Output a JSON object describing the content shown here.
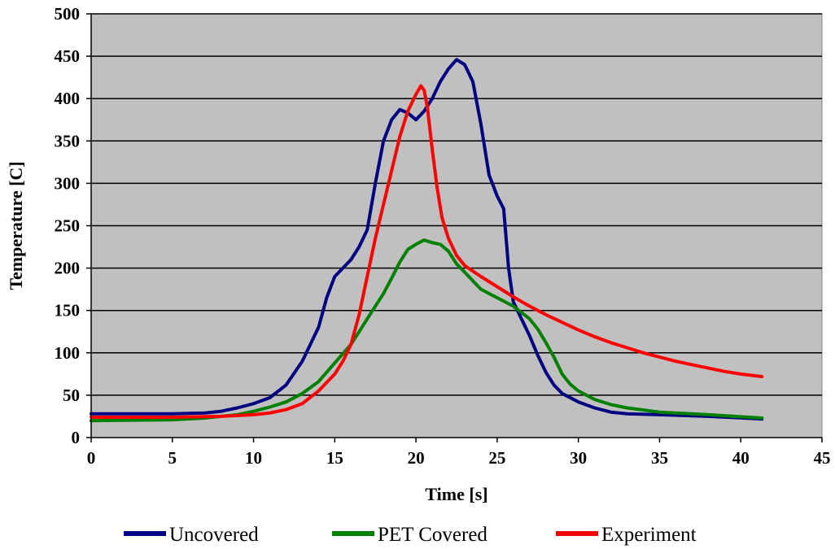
{
  "chart_data": {
    "type": "line",
    "title": "",
    "xlabel": "Time [s]",
    "ylabel": "Temperature [C]",
    "xlim": [
      0,
      45
    ],
    "ylim": [
      0,
      500
    ],
    "x_ticks": [
      0,
      5,
      10,
      15,
      20,
      25,
      30,
      35,
      40,
      45
    ],
    "y_ticks": [
      0,
      50,
      100,
      150,
      200,
      250,
      300,
      350,
      400,
      450,
      500
    ],
    "grid": "horizontal",
    "legend_position": "bottom",
    "plot_background": "#c0c0c0",
    "series": [
      {
        "name": "Uncovered",
        "color": "#000080",
        "points": [
          [
            0,
            28
          ],
          [
            5,
            28
          ],
          [
            7,
            29
          ],
          [
            8,
            31
          ],
          [
            9,
            35
          ],
          [
            10,
            40
          ],
          [
            11,
            47
          ],
          [
            12,
            62
          ],
          [
            13,
            90
          ],
          [
            14,
            130
          ],
          [
            14.5,
            165
          ],
          [
            15,
            190
          ],
          [
            15.5,
            200
          ],
          [
            16,
            210
          ],
          [
            16.5,
            225
          ],
          [
            17,
            245
          ],
          [
            17.5,
            300
          ],
          [
            18,
            350
          ],
          [
            18.5,
            375
          ],
          [
            19,
            387
          ],
          [
            19.5,
            383
          ],
          [
            20,
            375
          ],
          [
            20.5,
            385
          ],
          [
            21,
            400
          ],
          [
            21.5,
            420
          ],
          [
            22,
            435
          ],
          [
            22.5,
            446
          ],
          [
            23,
            440
          ],
          [
            23.5,
            420
          ],
          [
            24,
            370
          ],
          [
            24.5,
            310
          ],
          [
            25,
            285
          ],
          [
            25.4,
            270
          ],
          [
            25.7,
            200
          ],
          [
            26,
            160
          ],
          [
            26.5,
            140
          ],
          [
            27,
            120
          ],
          [
            27.5,
            97
          ],
          [
            28,
            77
          ],
          [
            28.5,
            62
          ],
          [
            29,
            52
          ],
          [
            30,
            42
          ],
          [
            31,
            35
          ],
          [
            32,
            30
          ],
          [
            33,
            28
          ],
          [
            35,
            27
          ],
          [
            38,
            25
          ],
          [
            41.3,
            22
          ]
        ]
      },
      {
        "name": "PET Covered",
        "color": "#008000",
        "points": [
          [
            0,
            20
          ],
          [
            5,
            21
          ],
          [
            7,
            23
          ],
          [
            8,
            25
          ],
          [
            9,
            27
          ],
          [
            10,
            31
          ],
          [
            11,
            36
          ],
          [
            12,
            42
          ],
          [
            13,
            52
          ],
          [
            14,
            66
          ],
          [
            15,
            88
          ],
          [
            16,
            110
          ],
          [
            16.5,
            125
          ],
          [
            17,
            140
          ],
          [
            17.5,
            155
          ],
          [
            18,
            170
          ],
          [
            18.5,
            188
          ],
          [
            19,
            207
          ],
          [
            19.5,
            222
          ],
          [
            20,
            228
          ],
          [
            20.5,
            233
          ],
          [
            21,
            230
          ],
          [
            21.5,
            228
          ],
          [
            22,
            220
          ],
          [
            22.5,
            205
          ],
          [
            23,
            195
          ],
          [
            23.5,
            185
          ],
          [
            24,
            175
          ],
          [
            25,
            165
          ],
          [
            26,
            155
          ],
          [
            27,
            140
          ],
          [
            27.5,
            128
          ],
          [
            28,
            112
          ],
          [
            28.5,
            95
          ],
          [
            29,
            75
          ],
          [
            29.5,
            63
          ],
          [
            30,
            55
          ],
          [
            31,
            45
          ],
          [
            32,
            39
          ],
          [
            33,
            35
          ],
          [
            35,
            30
          ],
          [
            38,
            27
          ],
          [
            41.3,
            23
          ]
        ]
      },
      {
        "name": "Experiment",
        "color": "#ff0000",
        "points": [
          [
            0,
            24
          ],
          [
            5,
            24
          ],
          [
            8,
            25
          ],
          [
            10,
            27
          ],
          [
            11,
            29
          ],
          [
            12,
            33
          ],
          [
            13,
            40
          ],
          [
            14,
            55
          ],
          [
            15,
            75
          ],
          [
            15.5,
            90
          ],
          [
            16,
            110
          ],
          [
            16.5,
            145
          ],
          [
            17,
            190
          ],
          [
            17.5,
            235
          ],
          [
            18,
            275
          ],
          [
            18.5,
            315
          ],
          [
            19,
            355
          ],
          [
            19.5,
            385
          ],
          [
            20,
            405
          ],
          [
            20.3,
            415
          ],
          [
            20.5,
            410
          ],
          [
            20.7,
            390
          ],
          [
            21,
            340
          ],
          [
            21.3,
            295
          ],
          [
            21.6,
            260
          ],
          [
            22,
            235
          ],
          [
            22.5,
            215
          ],
          [
            23,
            203
          ],
          [
            24,
            190
          ],
          [
            25,
            178
          ],
          [
            26,
            166
          ],
          [
            27,
            155
          ],
          [
            28,
            145
          ],
          [
            29,
            136
          ],
          [
            30,
            127
          ],
          [
            31,
            119
          ],
          [
            32,
            112
          ],
          [
            33,
            106
          ],
          [
            34,
            100
          ],
          [
            35,
            95
          ],
          [
            36,
            90
          ],
          [
            37,
            86
          ],
          [
            38,
            82
          ],
          [
            39,
            78
          ],
          [
            40,
            75
          ],
          [
            41.3,
            72
          ]
        ]
      }
    ]
  }
}
